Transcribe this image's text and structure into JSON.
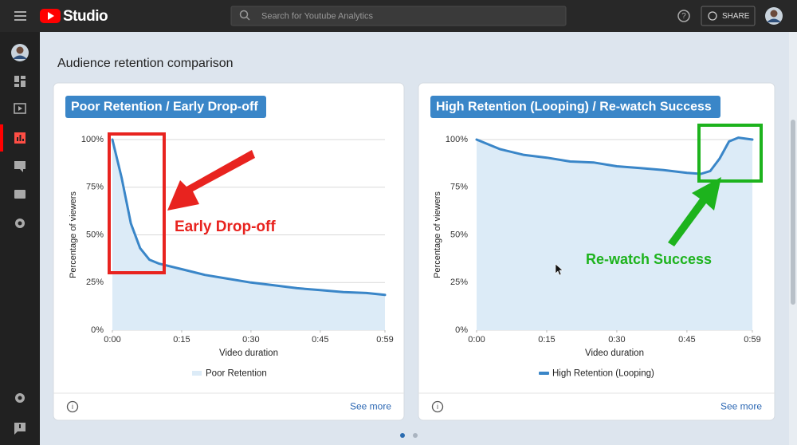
{
  "topbar": {
    "logo": "Studio",
    "search_placeholder": "Search for Youtube Analytics",
    "share": "SHARE"
  },
  "page_title": "Audience retention comparison",
  "chart_data": [
    {
      "type": "line",
      "title": "Poor Retention / Early Drop-off",
      "x": [
        0,
        2,
        4,
        6,
        8,
        10,
        15,
        20,
        25,
        30,
        35,
        40,
        45,
        50,
        55,
        59
      ],
      "series": [
        {
          "name": "Poor Retention",
          "color": "#3a86c8",
          "fill": "#dcebf7",
          "values": [
            100,
            80,
            56,
            43,
            37,
            35,
            32,
            29,
            27,
            25,
            23.5,
            22,
            21,
            20,
            19.5,
            18.5
          ]
        }
      ],
      "area": true,
      "legend_marker": "area",
      "xlim": [
        0,
        59
      ],
      "ylim": [
        0,
        100
      ],
      "xticks": [
        {
          "value": 0,
          "label": "0:00"
        },
        {
          "value": 15,
          "label": "0:15"
        },
        {
          "value": 30,
          "label": "0:30"
        },
        {
          "value": 45,
          "label": "0:45"
        },
        {
          "value": 59,
          "label": "0:59"
        }
      ],
      "yticks": [
        {
          "value": 0,
          "label": "0%"
        },
        {
          "value": 25,
          "label": "25%"
        },
        {
          "value": 50,
          "label": "50%"
        },
        {
          "value": 75,
          "label": "75%"
        },
        {
          "value": 100,
          "label": "100%"
        }
      ],
      "grid": true,
      "xlabel": "Video duration",
      "ylabel": "Percentage of viewers",
      "annotation": {
        "text": "Early Drop-off",
        "color": "#e8231f"
      },
      "footer_link": "See more"
    },
    {
      "type": "line",
      "title": "High Retention (Looping) / Re-watch Success",
      "x": [
        0,
        5,
        10,
        15,
        20,
        25,
        30,
        35,
        40,
        45,
        48,
        50,
        52,
        54,
        56,
        59
      ],
      "series": [
        {
          "name": "High Retention (Looping)",
          "color": "#3a86c8",
          "fill": "#dcebf7",
          "values": [
            100,
            95,
            92,
            90.5,
            88.5,
            88,
            86,
            85,
            84,
            82.5,
            82,
            83.5,
            90,
            99,
            101,
            100
          ]
        }
      ],
      "area": true,
      "legend_marker": "line",
      "xlim": [
        0,
        59
      ],
      "ylim": [
        0,
        100
      ],
      "xticks": [
        {
          "value": 0,
          "label": "0:00"
        },
        {
          "value": 15,
          "label": "0:15"
        },
        {
          "value": 30,
          "label": "0:30"
        },
        {
          "value": 45,
          "label": "0:45"
        },
        {
          "value": 59,
          "label": "0:59"
        }
      ],
      "yticks": [
        {
          "value": 0,
          "label": "0%"
        },
        {
          "value": 25,
          "label": "25%"
        },
        {
          "value": 50,
          "label": "50%"
        },
        {
          "value": 75,
          "label": "75%"
        },
        {
          "value": 100,
          "label": "100%"
        }
      ],
      "grid": true,
      "xlabel": "Video duration",
      "ylabel": "Percentage of viewers",
      "annotation": {
        "text": "Re-watch Success",
        "color": "#1db31d"
      },
      "footer_link": "See more"
    }
  ]
}
